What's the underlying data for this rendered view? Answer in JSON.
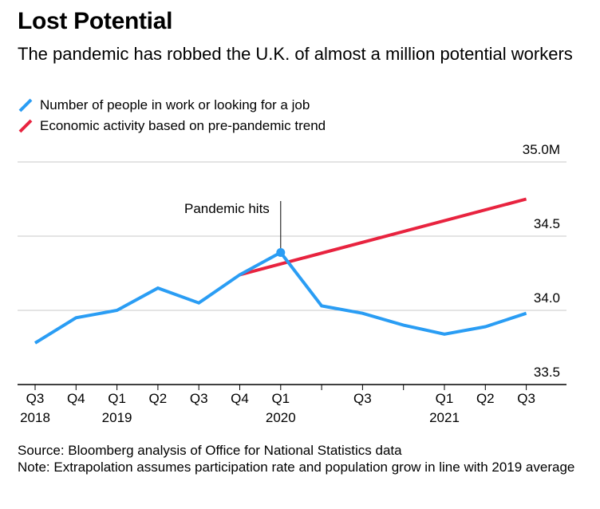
{
  "title": "Lost Potential",
  "subtitle": "The pandemic has robbed the U.K. of almost a million potential workers",
  "legend": [
    {
      "label": "Number of people in work or looking for a job",
      "color": "#2a9df4"
    },
    {
      "label": "Economic activity based on pre-pandemic trend",
      "color": "#e8233f"
    }
  ],
  "source": "Source: Bloomberg analysis of Office for National Statistics data",
  "note": "Note: Extrapolation assumes participation rate and population grow in line with 2019 average",
  "chart_data": {
    "type": "line",
    "ylim": [
      33.5,
      35.0
    ],
    "yticks": [
      {
        "value": 35.0,
        "label": "35.0M"
      },
      {
        "value": 34.5,
        "label": "34.5"
      },
      {
        "value": 34.0,
        "label": "34.0"
      },
      {
        "value": 33.5,
        "label": "33.5"
      }
    ],
    "x_ticks": [
      {
        "label": "Q3",
        "sub": "2018"
      },
      {
        "label": "Q4",
        "sub": ""
      },
      {
        "label": "Q1",
        "sub": "2019"
      },
      {
        "label": "Q2",
        "sub": ""
      },
      {
        "label": "Q3",
        "sub": ""
      },
      {
        "label": "Q4",
        "sub": ""
      },
      {
        "label": "Q1",
        "sub": "2020"
      },
      {
        "label": "",
        "sub": ""
      },
      {
        "label": "Q3",
        "sub": ""
      },
      {
        "label": "",
        "sub": ""
      },
      {
        "label": "Q1",
        "sub": "2021"
      },
      {
        "label": "Q2",
        "sub": ""
      },
      {
        "label": "Q3",
        "sub": ""
      }
    ],
    "series": [
      {
        "name": "Number of people in work or looking for a job",
        "color": "#2a9df4",
        "x_index": [
          0,
          1,
          2,
          3,
          4,
          5,
          6,
          7,
          8,
          9,
          10,
          11,
          12
        ],
        "values": [
          33.78,
          33.95,
          34.0,
          34.15,
          34.05,
          34.24,
          34.39,
          34.03,
          33.98,
          33.9,
          33.84,
          33.89,
          33.98
        ]
      },
      {
        "name": "Economic activity based on pre-pandemic trend",
        "color": "#e8233f",
        "x_index": [
          5,
          12
        ],
        "values": [
          34.24,
          34.75
        ]
      }
    ],
    "annotations": [
      {
        "text": "Pandemic hits",
        "x_index": 6,
        "value": 34.39
      }
    ]
  }
}
